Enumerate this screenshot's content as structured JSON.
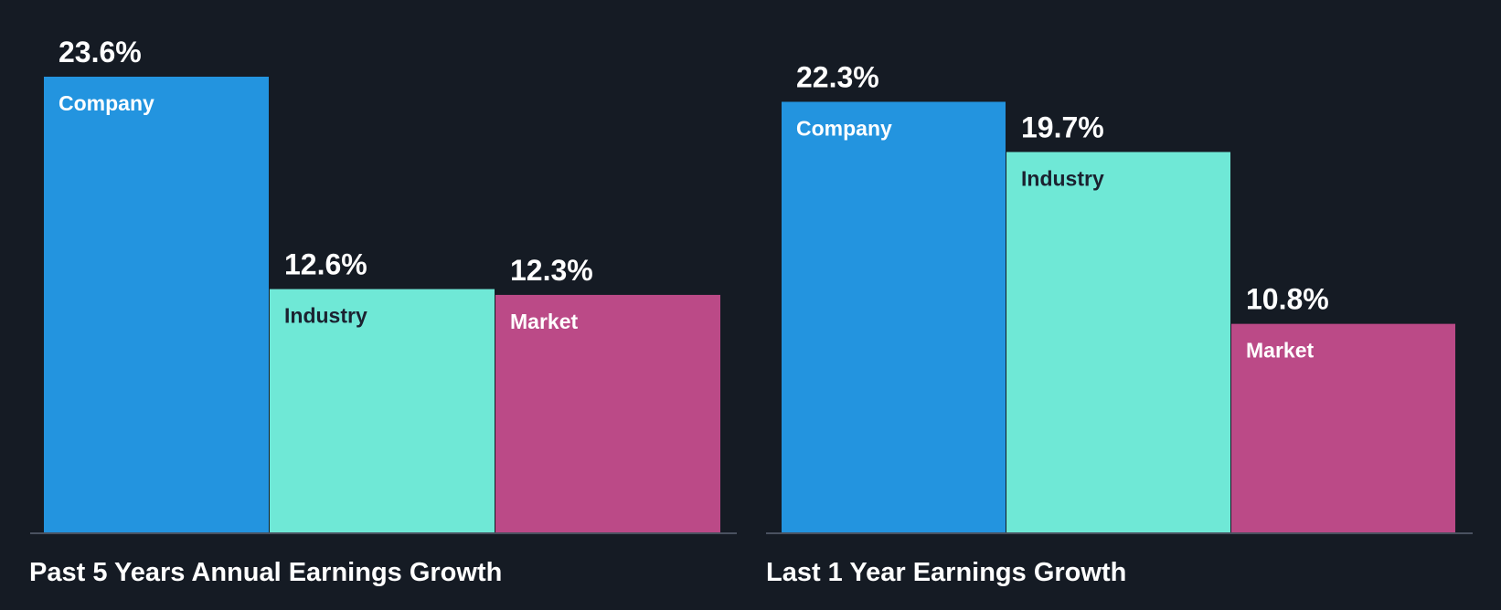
{
  "chart_data": [
    {
      "type": "bar",
      "title": "Past 5 Years Annual Earnings Growth",
      "categories": [
        "Company",
        "Industry",
        "Market"
      ],
      "values": [
        23.6,
        12.6,
        12.3
      ],
      "value_labels": [
        "23.6%",
        "12.6%",
        "12.3%"
      ],
      "unit": "%",
      "ylim": [
        0,
        23.6
      ],
      "xlabel": "",
      "ylabel": "",
      "colors": [
        "#2394df",
        "#6fe8d6",
        "#bb4a87"
      ],
      "label_colors": [
        "#ffffff",
        "#1b2230",
        "#ffffff"
      ]
    },
    {
      "type": "bar",
      "title": "Last 1 Year Earnings Growth",
      "categories": [
        "Company",
        "Industry",
        "Market"
      ],
      "values": [
        22.3,
        19.7,
        10.8
      ],
      "value_labels": [
        "22.3%",
        "19.7%",
        "10.8%"
      ],
      "unit": "%",
      "ylim": [
        0,
        23.6
      ],
      "xlabel": "",
      "ylabel": "",
      "colors": [
        "#2394df",
        "#6fe8d6",
        "#bb4a87"
      ],
      "label_colors": [
        "#ffffff",
        "#1b2230",
        "#ffffff"
      ]
    }
  ]
}
